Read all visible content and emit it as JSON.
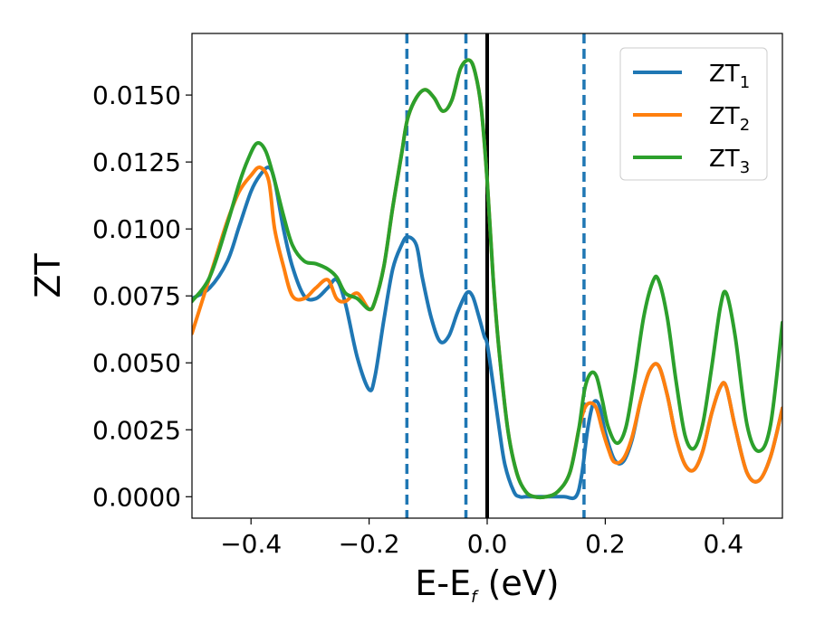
{
  "chart_data": {
    "type": "line",
    "title": "",
    "xlabel": {
      "main": "E-E",
      "sub": "f",
      "unit": " (eV)"
    },
    "ylabel": "ZT",
    "xlim": [
      -0.5,
      0.5
    ],
    "ylim": [
      -0.0008,
      0.0173
    ],
    "x_ticks": [
      -0.4,
      -0.2,
      0.0,
      0.2,
      0.4
    ],
    "x_tick_labels": [
      "−0.4",
      "−0.2",
      "0.0",
      "0.2",
      "0.4"
    ],
    "y_ticks": [
      0.0,
      0.0025,
      0.005,
      0.0075,
      0.01,
      0.0125,
      0.015
    ],
    "y_tick_labels": [
      "0.0000",
      "0.0025",
      "0.0050",
      "0.0075",
      "0.0100",
      "0.0125",
      "0.0150"
    ],
    "grid": false,
    "legend_position": "top-right",
    "vertical_lines": [
      {
        "x": -0.136,
        "style": "dashed",
        "color": "#1f77b4"
      },
      {
        "x": -0.036,
        "style": "dashed",
        "color": "#1f77b4"
      },
      {
        "x": 0.0,
        "style": "solid",
        "color": "#000000"
      },
      {
        "x": 0.164,
        "style": "dashed",
        "color": "#1f77b4"
      }
    ],
    "series": [
      {
        "name": "ZT",
        "sub": "1",
        "color": "#1f77b4",
        "x": [
          -0.5,
          -0.47,
          -0.44,
          -0.42,
          -0.4,
          -0.385,
          -0.37,
          -0.36,
          -0.345,
          -0.33,
          -0.31,
          -0.29,
          -0.27,
          -0.255,
          -0.24,
          -0.22,
          -0.2,
          -0.19,
          -0.175,
          -0.16,
          -0.145,
          -0.135,
          -0.12,
          -0.11,
          -0.095,
          -0.08,
          -0.065,
          -0.05,
          -0.035,
          -0.025,
          -0.015,
          -0.005,
          0.0,
          0.01,
          0.02,
          0.03,
          0.045,
          0.055,
          0.065,
          0.08,
          0.1,
          0.13,
          0.15,
          0.16,
          0.17,
          0.18,
          0.19,
          0.2,
          0.215,
          0.23,
          0.245,
          0.26,
          0.275,
          0.29,
          0.305,
          0.32,
          0.335,
          0.35,
          0.365,
          0.38,
          0.395,
          0.405,
          0.42,
          0.44,
          0.46,
          0.48,
          0.5
        ],
        "y": [
          0.0074,
          0.0078,
          0.0088,
          0.0101,
          0.0114,
          0.012,
          0.0123,
          0.0118,
          0.01,
          0.0086,
          0.0075,
          0.0074,
          0.0078,
          0.0081,
          0.0072,
          0.0052,
          0.004,
          0.0045,
          0.0066,
          0.0085,
          0.0094,
          0.0097,
          0.0094,
          0.0082,
          0.0067,
          0.0058,
          0.006,
          0.0069,
          0.0076,
          0.0075,
          0.0068,
          0.006,
          0.0057,
          0.0042,
          0.0026,
          0.0012,
          0.0002,
          0.0,
          0.0,
          0.0,
          0.0,
          0.0,
          0.0,
          0.0008,
          0.0025,
          0.0035,
          0.0034,
          0.0024,
          0.0014,
          0.0013,
          0.0021,
          0.0036,
          0.0047,
          0.0049,
          0.0038,
          0.0022,
          0.0012,
          0.001,
          0.0017,
          0.0031,
          0.0041,
          0.0041,
          0.0026,
          0.0009,
          0.0006,
          0.0015,
          0.0033
        ]
      },
      {
        "name": "ZT",
        "sub": "2",
        "color": "#ff7f0e",
        "x": [
          -0.5,
          -0.48,
          -0.46,
          -0.44,
          -0.42,
          -0.4,
          -0.385,
          -0.37,
          -0.36,
          -0.345,
          -0.33,
          -0.31,
          -0.29,
          -0.27,
          -0.255,
          -0.24,
          -0.22,
          -0.2,
          -0.19,
          -0.175,
          -0.16,
          -0.145,
          -0.135,
          -0.12,
          -0.105,
          -0.09,
          -0.075,
          -0.06,
          -0.045,
          -0.03,
          -0.02,
          -0.01,
          0.0,
          0.01,
          0.02,
          0.035,
          0.05,
          0.065,
          0.08,
          0.1,
          0.12,
          0.14,
          0.155,
          0.165,
          0.175,
          0.185,
          0.195,
          0.205,
          0.215,
          0.23,
          0.245,
          0.26,
          0.275,
          0.29,
          0.305,
          0.32,
          0.335,
          0.35,
          0.365,
          0.38,
          0.395,
          0.405,
          0.42,
          0.44,
          0.46,
          0.48,
          0.5
        ],
        "y": [
          0.0061,
          0.0075,
          0.0089,
          0.0103,
          0.0114,
          0.012,
          0.0123,
          0.0118,
          0.01,
          0.0086,
          0.0075,
          0.0074,
          0.0078,
          0.0081,
          0.0074,
          0.0073,
          0.0076,
          0.007,
          0.0073,
          0.0086,
          0.0108,
          0.0128,
          0.0141,
          0.0149,
          0.0152,
          0.0149,
          0.0144,
          0.0148,
          0.016,
          0.0163,
          0.0158,
          0.0145,
          0.0118,
          0.0082,
          0.0055,
          0.0025,
          0.0009,
          0.0002,
          0.0,
          0.0,
          0.0002,
          0.0009,
          0.0025,
          0.0033,
          0.0035,
          0.0033,
          0.0025,
          0.0018,
          0.0013,
          0.0014,
          0.0022,
          0.0036,
          0.0047,
          0.0049,
          0.0038,
          0.0022,
          0.0012,
          0.001,
          0.0017,
          0.0031,
          0.0041,
          0.0041,
          0.0026,
          0.0009,
          0.0006,
          0.0015,
          0.0033
        ]
      },
      {
        "name": "ZT",
        "sub": "3",
        "color": "#2ca02c",
        "x": [
          -0.5,
          -0.47,
          -0.44,
          -0.42,
          -0.405,
          -0.39,
          -0.375,
          -0.36,
          -0.345,
          -0.33,
          -0.31,
          -0.29,
          -0.27,
          -0.255,
          -0.24,
          -0.22,
          -0.2,
          -0.19,
          -0.175,
          -0.16,
          -0.145,
          -0.135,
          -0.12,
          -0.105,
          -0.09,
          -0.075,
          -0.06,
          -0.045,
          -0.03,
          -0.02,
          -0.01,
          0.0,
          0.01,
          0.02,
          0.035,
          0.05,
          0.065,
          0.08,
          0.1,
          0.12,
          0.14,
          0.155,
          0.165,
          0.175,
          0.185,
          0.195,
          0.205,
          0.22,
          0.235,
          0.25,
          0.265,
          0.28,
          0.29,
          0.305,
          0.32,
          0.335,
          0.35,
          0.365,
          0.38,
          0.395,
          0.405,
          0.42,
          0.44,
          0.46,
          0.48,
          0.5
        ],
        "y": [
          0.0073,
          0.0082,
          0.0102,
          0.0117,
          0.0126,
          0.0132,
          0.0129,
          0.0118,
          0.0105,
          0.0094,
          0.0088,
          0.0087,
          0.0085,
          0.0082,
          0.0076,
          0.0074,
          0.007,
          0.0073,
          0.0086,
          0.0108,
          0.0128,
          0.0141,
          0.0149,
          0.0152,
          0.0149,
          0.0144,
          0.0148,
          0.016,
          0.0163,
          0.0158,
          0.0145,
          0.0118,
          0.0082,
          0.0055,
          0.0025,
          0.0009,
          0.0002,
          0.0,
          0.0,
          0.0002,
          0.0009,
          0.0025,
          0.004,
          0.0046,
          0.0045,
          0.0036,
          0.0026,
          0.002,
          0.0026,
          0.0045,
          0.0067,
          0.008,
          0.0081,
          0.0067,
          0.0043,
          0.0023,
          0.0018,
          0.0027,
          0.0048,
          0.0071,
          0.0076,
          0.006,
          0.0027,
          0.0017,
          0.0027,
          0.0065
        ]
      }
    ]
  }
}
